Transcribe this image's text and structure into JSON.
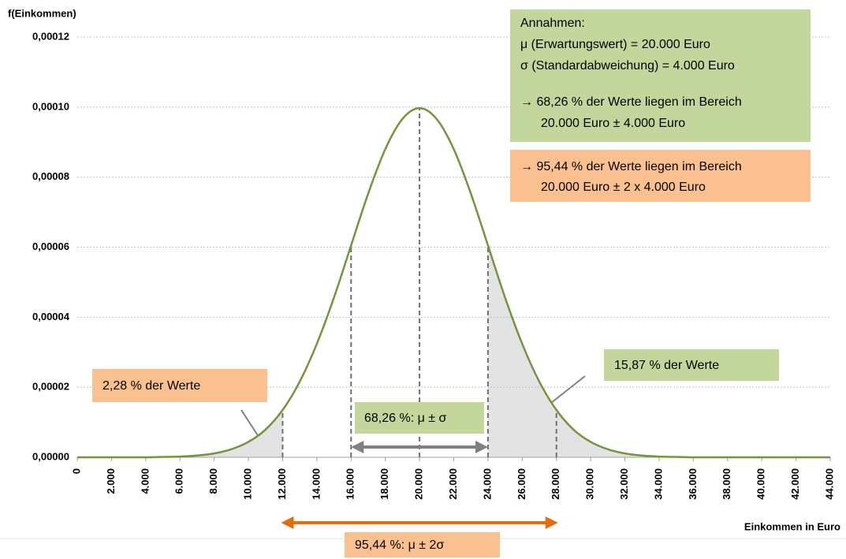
{
  "chart_data": {
    "type": "line",
    "y_axis_label": "f(Einkommen)",
    "x_axis_label": "Einkommen in Euro",
    "x": [
      0,
      1000,
      2000,
      3000,
      4000,
      5000,
      6000,
      7000,
      8000,
      9000,
      10000,
      11000,
      12000,
      13000,
      14000,
      15000,
      16000,
      17000,
      18000,
      19000,
      20000,
      21000,
      22000,
      23000,
      24000,
      25000,
      26000,
      27000,
      28000,
      29000,
      30000,
      31000,
      32000,
      33000,
      34000,
      35000,
      36000,
      37000,
      38000,
      39000,
      40000,
      41000,
      42000,
      43000,
      44000
    ],
    "series": [
      {
        "color": "#77933c",
        "values": [
          0,
          0,
          0,
          0,
          0,
          1e-07,
          2e-07,
          5e-07,
          1.1e-06,
          2.3e-06,
          4.4e-06,
          7.9e-06,
          1.35e-05,
          2.16e-05,
          3.24e-05,
          4.56e-05,
          6.05e-05,
          7.53e-05,
          8.8e-05,
          9.66e-05,
          9.97e-05,
          9.66e-05,
          8.8e-05,
          7.53e-05,
          6.05e-05,
          4.56e-05,
          3.24e-05,
          2.16e-05,
          1.35e-05,
          7.9e-06,
          4.4e-06,
          2.3e-06,
          1.1e-06,
          5e-07,
          2e-07,
          1e-07,
          0,
          0,
          0,
          0,
          0,
          0,
          0,
          0,
          0
        ]
      }
    ],
    "shade_color": "#e3e3e3",
    "reference_lines": [
      12000,
      16000,
      20000,
      24000,
      28000
    ],
    "xlim": [
      0,
      44000
    ],
    "xticks": [
      0,
      {
        "value": 2000,
        "label": "2.000"
      },
      {
        "value": 4000,
        "label": "4.000"
      },
      {
        "value": 6000,
        "label": "6.000"
      },
      {
        "value": 8000,
        "label": "8.000"
      },
      {
        "value": 10000,
        "label": "10.000"
      },
      {
        "value": 12000,
        "label": "12.000"
      },
      {
        "value": 14000,
        "label": "14.000"
      },
      {
        "value": 16000,
        "label": "16.000"
      },
      {
        "value": 18000,
        "label": "18.000"
      },
      {
        "value": 20000,
        "label": "20.000"
      },
      {
        "value": 22000,
        "label": "22.000"
      },
      {
        "value": 24000,
        "label": "24.000"
      },
      {
        "value": 26000,
        "label": "26.000"
      },
      {
        "value": 28000,
        "label": "28.000"
      },
      {
        "value": 30000,
        "label": "30.000"
      },
      {
        "value": 32000,
        "label": "32.000"
      },
      {
        "value": 34000,
        "label": "34.000"
      },
      {
        "value": 36000,
        "label": "36.000"
      },
      {
        "value": 38000,
        "label": "38.000"
      },
      {
        "value": 40000,
        "label": "40.000"
      },
      {
        "value": 42000,
        "label": "42.000"
      },
      {
        "value": 44000,
        "label": "44.000"
      }
    ],
    "ylim": [
      0,
      0.00012
    ],
    "yticks": [
      {
        "value": 0,
        "label": "0,00000"
      },
      {
        "value": 2e-05,
        "label": "0,00002"
      },
      {
        "value": 4e-05,
        "label": "0,00004"
      },
      {
        "value": 6e-05,
        "label": "0,00006"
      },
      {
        "value": 8e-05,
        "label": "0,00008"
      },
      {
        "value": 0.0001,
        "label": "0,00010"
      },
      {
        "value": 0.00012,
        "label": "0,00012"
      }
    ],
    "grid": true,
    "annotations": [
      {
        "color": "#c3d69b",
        "lines": [
          "Annahmen:",
          "μ (Erwartungswert) = 20.000 Euro",
          "σ (Standardabweichung) = 4.000 Euro",
          "→ 68,26 % der Werte liegen im Bereich",
          "20.000 Euro ± 4.000 Euro"
        ]
      },
      {
        "color": "#fac090",
        "lines": [
          "→ 95,44 % der Werte liegen im Bereich",
          "20.000 Euro ± 2 x 4.000 Euro"
        ]
      },
      {
        "color": "#fac090",
        "lines": [
          "2,28 % der Werte"
        ]
      },
      {
        "color": "#c3d69b",
        "lines": [
          "15,87 % der Werte"
        ]
      },
      {
        "color": "#c3d69b",
        "lines": [
          "68,26 %: μ ± σ"
        ]
      },
      {
        "color": "#fac090",
        "lines": [
          "95,44 %: μ ± 2σ"
        ]
      }
    ]
  }
}
